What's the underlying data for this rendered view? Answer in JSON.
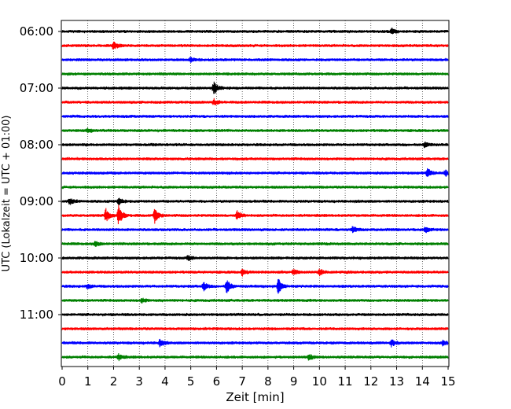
{
  "chart_data": {
    "type": "line",
    "title": "",
    "xlabel": "Zeit  [min]",
    "ylabel": "UTC (Lokalzeit = UTC + 01:00)",
    "xlim": [
      0,
      15
    ],
    "x_ticks": [
      0,
      1,
      2,
      3,
      4,
      5,
      6,
      7,
      8,
      9,
      10,
      11,
      12,
      13,
      14,
      15
    ],
    "x_tick_labels": [
      "0",
      "1",
      "2",
      "3",
      "4",
      "5",
      "6",
      "7",
      "8",
      "9",
      "10",
      "11",
      "12",
      "13",
      "14",
      "15"
    ],
    "y_tick_labels": [
      "06:00",
      "07:00",
      "08:00",
      "09:00",
      "10:00",
      "11:00"
    ],
    "vertical_grid": true,
    "grid_style": "dotted",
    "color_cycle": [
      "#000000",
      "#ff0000",
      "#0000ff",
      "#008000"
    ],
    "traces": [
      {
        "start": "06:00",
        "color": "#000000",
        "events": [
          {
            "t": 12.8,
            "amp": 0.45
          }
        ]
      },
      {
        "start": "06:15",
        "color": "#ff0000",
        "events": [
          {
            "t": 2.0,
            "amp": 0.6
          }
        ]
      },
      {
        "start": "06:30",
        "color": "#0000ff",
        "events": [
          {
            "t": 5.0,
            "amp": 0.3
          }
        ]
      },
      {
        "start": "06:45",
        "color": "#008000",
        "events": []
      },
      {
        "start": "07:00",
        "color": "#000000",
        "events": [
          {
            "t": 5.9,
            "amp": 1.0
          }
        ]
      },
      {
        "start": "07:15",
        "color": "#ff0000",
        "events": [
          {
            "t": 5.9,
            "amp": 0.4
          }
        ]
      },
      {
        "start": "07:30",
        "color": "#0000ff",
        "events": []
      },
      {
        "start": "07:45",
        "color": "#008000",
        "events": [
          {
            "t": 1.0,
            "amp": 0.3
          }
        ]
      },
      {
        "start": "08:00",
        "color": "#000000",
        "events": [
          {
            "t": 14.1,
            "amp": 0.4
          }
        ]
      },
      {
        "start": "08:15",
        "color": "#ff0000",
        "events": []
      },
      {
        "start": "08:30",
        "color": "#0000ff",
        "events": [
          {
            "t": 14.2,
            "amp": 0.55
          },
          {
            "t": 14.9,
            "amp": 0.4
          }
        ]
      },
      {
        "start": "08:45",
        "color": "#008000",
        "events": []
      },
      {
        "start": "09:00",
        "color": "#000000",
        "events": [
          {
            "t": 2.2,
            "amp": 0.6
          },
          {
            "t": 0.3,
            "amp": 0.4
          }
        ]
      },
      {
        "start": "09:15",
        "color": "#ff0000",
        "events": [
          {
            "t": 1.7,
            "amp": 0.9
          },
          {
            "t": 2.2,
            "amp": 1.4
          },
          {
            "t": 3.6,
            "amp": 1.0
          },
          {
            "t": 6.8,
            "amp": 0.6
          }
        ]
      },
      {
        "start": "09:30",
        "color": "#0000ff",
        "events": [
          {
            "t": 11.3,
            "amp": 0.4
          },
          {
            "t": 14.1,
            "amp": 0.4
          }
        ]
      },
      {
        "start": "09:45",
        "color": "#008000",
        "events": [
          {
            "t": 1.3,
            "amp": 0.35
          }
        ]
      },
      {
        "start": "10:00",
        "color": "#000000",
        "events": [
          {
            "t": 4.9,
            "amp": 0.35
          }
        ]
      },
      {
        "start": "10:15",
        "color": "#ff0000",
        "events": [
          {
            "t": 7.0,
            "amp": 0.45
          },
          {
            "t": 9.0,
            "amp": 0.4
          },
          {
            "t": 10.0,
            "amp": 0.45
          }
        ]
      },
      {
        "start": "10:30",
        "color": "#0000ff",
        "events": [
          {
            "t": 5.5,
            "amp": 0.6
          },
          {
            "t": 6.4,
            "amp": 1.0
          },
          {
            "t": 8.4,
            "amp": 1.1
          },
          {
            "t": 1.0,
            "amp": 0.3
          }
        ]
      },
      {
        "start": "10:45",
        "color": "#008000",
        "events": [
          {
            "t": 3.1,
            "amp": 0.3
          }
        ]
      },
      {
        "start": "11:00",
        "color": "#000000",
        "events": []
      },
      {
        "start": "11:15",
        "color": "#ff0000",
        "events": []
      },
      {
        "start": "11:30",
        "color": "#0000ff",
        "events": [
          {
            "t": 3.8,
            "amp": 0.5
          },
          {
            "t": 12.8,
            "amp": 0.5
          },
          {
            "t": 14.8,
            "amp": 0.4
          }
        ]
      },
      {
        "start": "11:45",
        "color": "#008000",
        "events": [
          {
            "t": 2.2,
            "amp": 0.4
          },
          {
            "t": 9.6,
            "amp": 0.4
          }
        ]
      }
    ]
  }
}
